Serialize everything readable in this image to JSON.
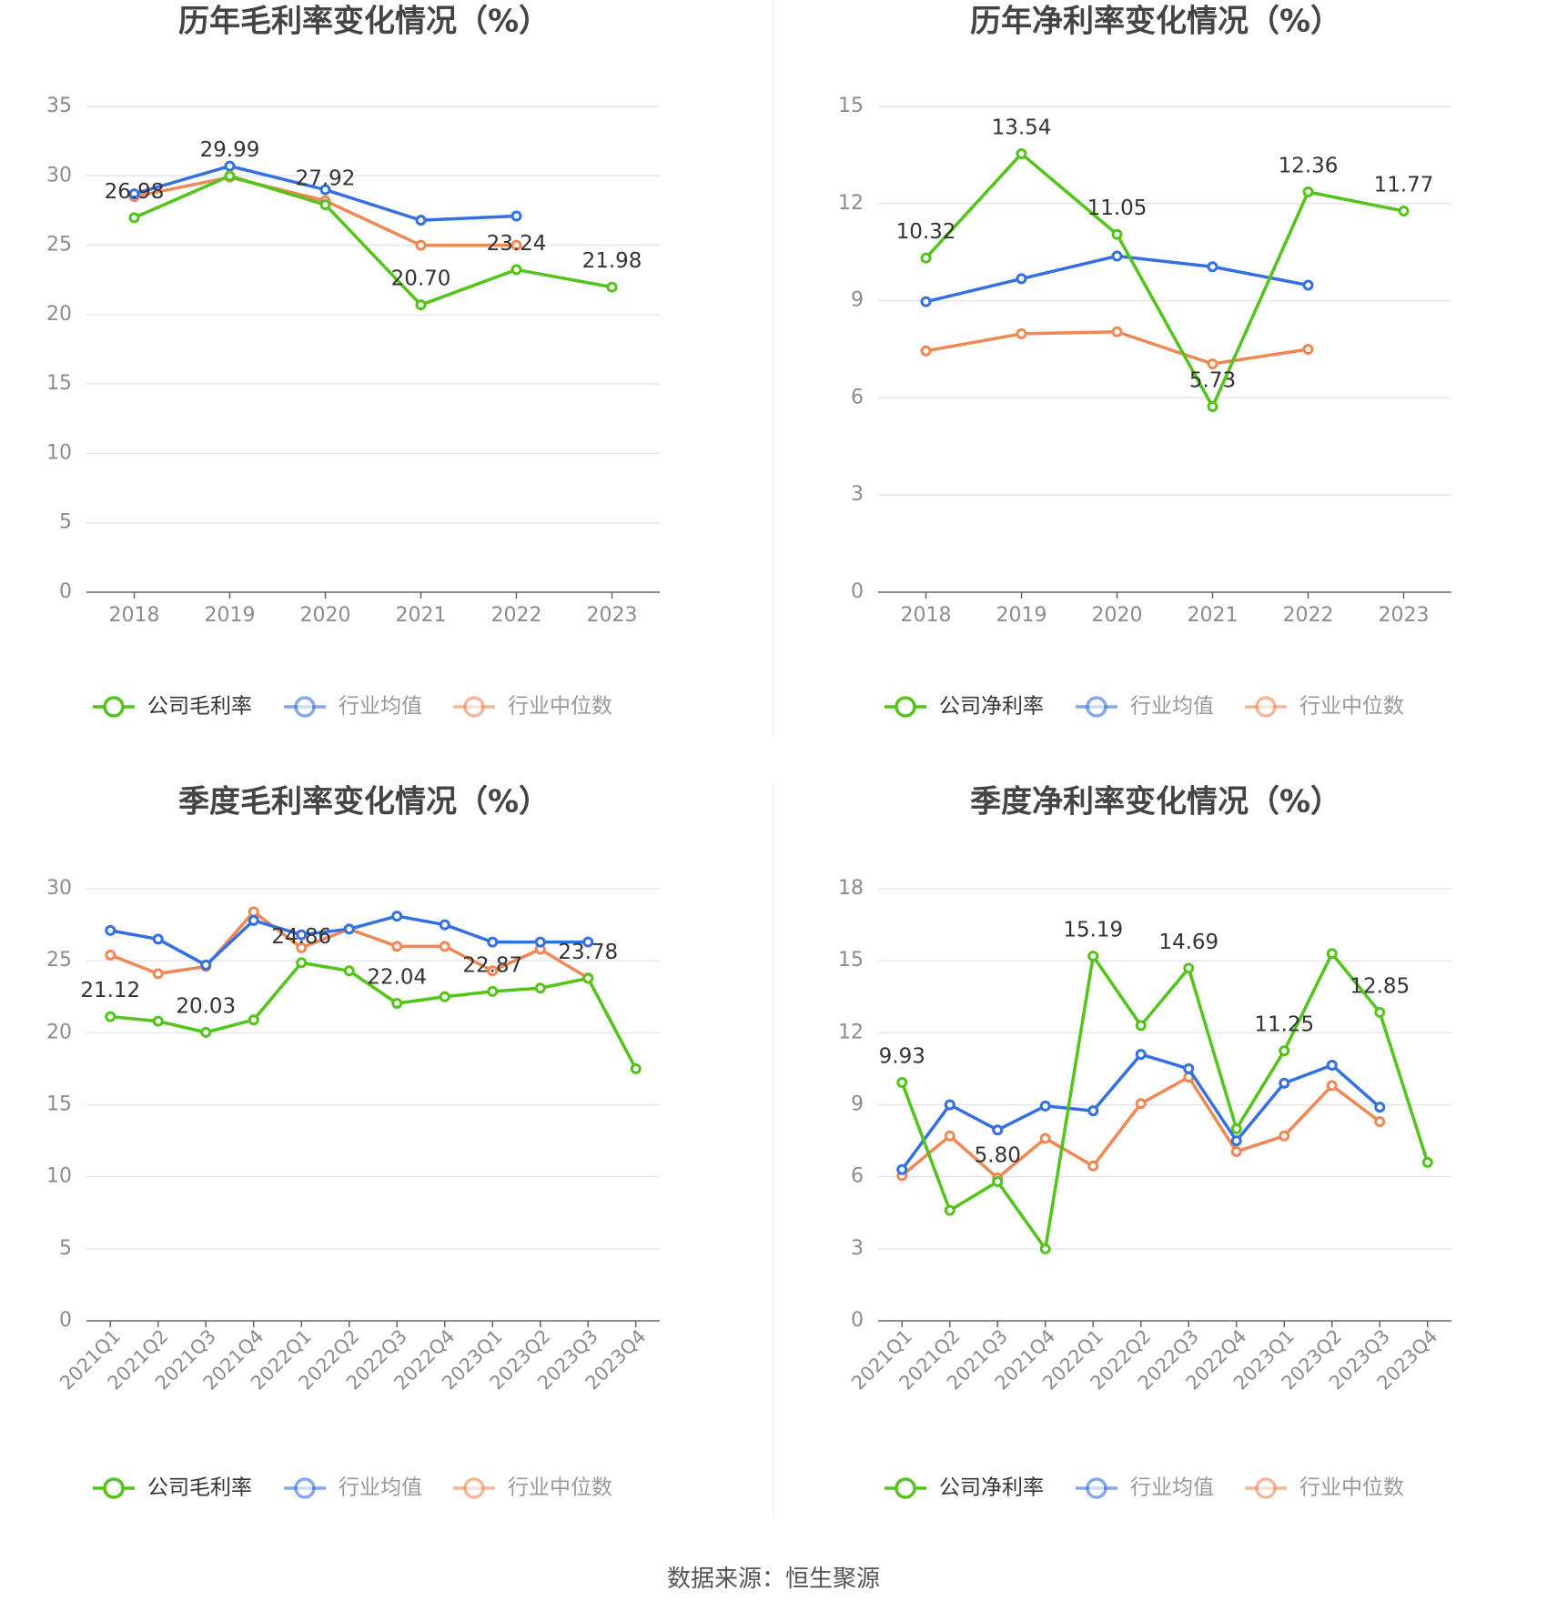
{
  "colors": {
    "company": "#52c41a",
    "industry_avg": "#3370e0",
    "industry_median": "#f08856",
    "grid": "#e3e6f0",
    "axis": "#666666",
    "tick_text": "#8c8c8c",
    "title_text": "#444444",
    "label_text": "#333333"
  },
  "source_text": "数据来源：恒生聚源",
  "chart_data": [
    {
      "type": "line",
      "title": "历年毛利率变化情况（%）",
      "categories": [
        "2018",
        "2019",
        "2020",
        "2021",
        "2022",
        "2023"
      ],
      "ylim": [
        0,
        35
      ],
      "yticks": [
        0,
        5,
        10,
        15,
        20,
        25,
        30,
        35
      ],
      "grid": true,
      "legend_position": "bottom",
      "rotate_x_labels": false,
      "series": [
        {
          "name": "公司毛利率",
          "color_key": "company",
          "values": [
            26.98,
            29.99,
            27.92,
            20.7,
            23.24,
            21.98
          ],
          "data_labels": [
            "26.98",
            "29.99",
            "27.92",
            "20.70",
            "23.24",
            "21.98"
          ]
        },
        {
          "name": "行业均值",
          "color_key": "industry_avg",
          "values": [
            28.7,
            30.7,
            29.0,
            26.8,
            27.1,
            null
          ]
        },
        {
          "name": "行业中位数",
          "color_key": "industry_median",
          "values": [
            28.5,
            29.9,
            28.2,
            25.0,
            25.0,
            null
          ]
        }
      ]
    },
    {
      "type": "line",
      "title": "历年净利率变化情况（%）",
      "categories": [
        "2018",
        "2019",
        "2020",
        "2021",
        "2022",
        "2023"
      ],
      "ylim": [
        0,
        15
      ],
      "yticks": [
        0,
        3,
        6,
        9,
        12,
        15
      ],
      "grid": true,
      "legend_position": "bottom",
      "rotate_x_labels": false,
      "series": [
        {
          "name": "公司净利率",
          "color_key": "company",
          "values": [
            10.32,
            13.54,
            11.05,
            5.73,
            12.36,
            11.77
          ],
          "data_labels": [
            "10.32",
            "13.54",
            "11.05",
            "5.73",
            "12.36",
            "11.77"
          ]
        },
        {
          "name": "行业均值",
          "color_key": "industry_avg",
          "values": [
            8.97,
            9.68,
            10.38,
            10.05,
            9.48,
            null
          ]
        },
        {
          "name": "行业中位数",
          "color_key": "industry_median",
          "values": [
            7.45,
            7.98,
            8.04,
            7.05,
            7.5,
            null
          ]
        }
      ]
    },
    {
      "type": "line",
      "title": "季度毛利率变化情况（%）",
      "categories": [
        "2021Q1",
        "2021Q2",
        "2021Q3",
        "2021Q4",
        "2022Q1",
        "2022Q2",
        "2022Q3",
        "2022Q4",
        "2023Q1",
        "2023Q2",
        "2023Q3",
        "2023Q4"
      ],
      "ylim": [
        0,
        30
      ],
      "yticks": [
        0,
        5,
        10,
        15,
        20,
        25,
        30
      ],
      "grid": true,
      "legend_position": "bottom",
      "rotate_x_labels": true,
      "series": [
        {
          "name": "公司毛利率",
          "color_key": "company",
          "values": [
            21.12,
            20.8,
            20.03,
            20.9,
            24.86,
            24.3,
            22.04,
            22.5,
            22.87,
            23.1,
            23.78,
            17.5
          ],
          "data_labels": [
            "21.12",
            "",
            "20.03",
            "",
            "24.86",
            "",
            "22.04",
            "",
            "22.87",
            "",
            "23.78",
            ""
          ]
        },
        {
          "name": "行业均值",
          "color_key": "industry_avg",
          "values": [
            27.1,
            26.5,
            24.7,
            27.8,
            26.8,
            27.2,
            28.1,
            27.5,
            26.3,
            26.3,
            26.3,
            null
          ]
        },
        {
          "name": "行业中位数",
          "color_key": "industry_median",
          "values": [
            25.4,
            24.1,
            24.6,
            28.4,
            25.9,
            27.2,
            26.0,
            26.0,
            24.3,
            25.8,
            23.8,
            null
          ]
        }
      ]
    },
    {
      "type": "line",
      "title": "季度净利率变化情况（%）",
      "categories": [
        "2021Q1",
        "2021Q2",
        "2021Q3",
        "2021Q4",
        "2022Q1",
        "2022Q2",
        "2022Q3",
        "2022Q4",
        "2023Q1",
        "2023Q2",
        "2023Q3",
        "2023Q4"
      ],
      "ylim": [
        0,
        18
      ],
      "yticks": [
        0,
        3,
        6,
        9,
        12,
        15,
        18
      ],
      "grid": true,
      "legend_position": "bottom",
      "rotate_x_labels": true,
      "series": [
        {
          "name": "公司净利率",
          "color_key": "company",
          "values": [
            9.93,
            4.6,
            5.8,
            3.0,
            15.19,
            12.3,
            14.69,
            8.0,
            11.25,
            15.3,
            12.85,
            6.6
          ],
          "data_labels": [
            "9.93",
            "",
            "5.80",
            "",
            "15.19",
            "",
            "14.69",
            "",
            "11.25",
            "",
            "12.85",
            ""
          ]
        },
        {
          "name": "行业均值",
          "color_key": "industry_avg",
          "values": [
            6.3,
            9.0,
            7.95,
            8.95,
            8.75,
            11.1,
            10.5,
            7.5,
            9.9,
            10.65,
            8.9,
            null
          ]
        },
        {
          "name": "行业中位数",
          "color_key": "industry_median",
          "values": [
            6.05,
            7.7,
            5.95,
            7.6,
            6.45,
            9.05,
            10.15,
            7.05,
            7.7,
            9.8,
            8.3,
            null
          ]
        }
      ]
    }
  ]
}
